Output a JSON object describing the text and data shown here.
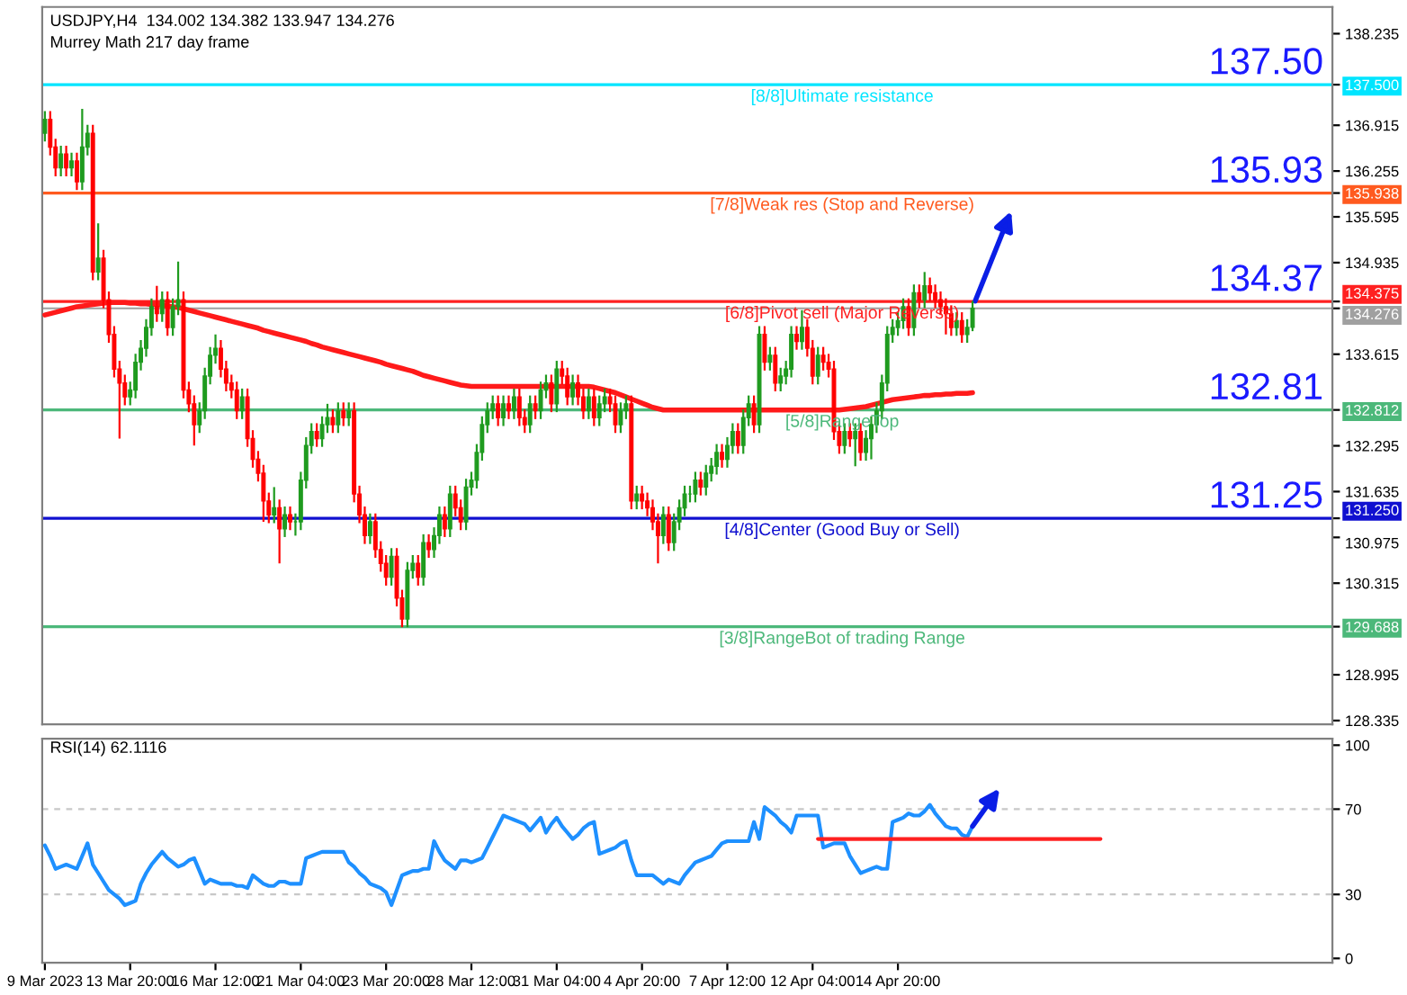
{
  "chart_data": [
    {
      "type": "candlestick",
      "title": "USDJPY,H4  134.002 134.382 133.947 134.276",
      "subtitle": "Murrey Math 217 day frame",
      "tick_labels": "y",
      "categories": [
        null,
        null,
        null,
        null,
        null,
        null,
        null,
        null,
        null,
        null,
        null,
        null,
        null,
        null,
        null,
        null,
        null,
        null,
        null,
        null,
        null,
        null,
        null,
        null,
        null,
        null,
        null,
        null,
        null,
        null,
        null,
        null,
        null,
        null,
        null,
        null,
        null,
        null,
        null,
        null,
        null,
        null,
        null,
        null,
        null,
        null,
        null,
        null,
        null,
        null,
        null,
        null,
        null,
        null,
        null,
        null,
        null,
        null,
        null,
        null,
        null,
        null,
        null,
        null,
        null,
        null,
        null,
        null,
        null,
        null,
        null,
        null,
        null,
        null,
        null,
        null,
        null,
        null,
        null,
        null,
        null,
        null,
        null,
        null,
        null,
        null,
        null,
        null,
        null,
        null,
        null,
        null,
        null,
        null,
        null,
        null,
        null,
        null,
        null,
        null,
        null,
        null,
        null,
        null,
        null,
        null,
        null,
        null,
        null,
        null,
        null,
        null,
        null,
        null,
        null,
        null,
        null,
        null,
        null,
        null,
        null,
        null,
        null,
        null,
        null,
        null,
        null,
        null,
        null,
        null,
        null,
        null,
        null,
        null,
        null,
        null,
        null,
        null,
        null,
        null,
        null,
        null,
        null,
        null,
        null,
        null,
        null,
        null,
        null,
        null,
        null,
        null,
        null,
        null,
        null,
        null,
        null,
        null,
        null,
        null,
        null,
        null,
        null,
        null,
        null,
        null,
        null,
        null,
        null,
        null,
        null,
        null,
        null,
        null,
        null,
        null,
        null,
        null,
        null,
        null,
        null,
        null,
        null,
        null,
        null,
        null,
        null,
        null,
        null,
        null,
        null,
        null,
        null,
        null,
        null,
        null,
        null,
        null,
        null,
        null,
        null,
        null,
        null,
        null,
        null,
        null,
        null,
        null,
        null,
        null,
        null,
        null,
        null,
        null,
        null,
        null,
        null,
        null,
        null,
        null,
        null,
        null,
        null,
        null,
        null,
        null,
        null,
        null,
        null,
        null,
        null,
        null,
        null,
        null,
        null,
        null,
        null,
        null,
        null,
        null,
        null,
        null
      ],
      "ohlc": [
        [
          136.8,
          137.12,
          136.68,
          137.0
        ],
        [
          137.0,
          137.12,
          136.48,
          136.6
        ],
        [
          136.6,
          136.72,
          136.18,
          136.3
        ],
        [
          136.3,
          136.62,
          136.18,
          136.5
        ],
        [
          136.5,
          136.62,
          136.18,
          136.3
        ],
        [
          136.3,
          136.52,
          136.18,
          136.4
        ],
        [
          136.4,
          136.52,
          135.98,
          136.1
        ],
        [
          136.1,
          137.15,
          135.98,
          136.6
        ],
        [
          136.6,
          136.92,
          136.48,
          136.8
        ],
        [
          136.8,
          136.92,
          134.68,
          134.8
        ],
        [
          134.8,
          135.5,
          134.68,
          135.0
        ],
        [
          135.0,
          135.12,
          134.28,
          134.4
        ],
        [
          134.4,
          134.52,
          133.78,
          133.9
        ],
        [
          133.9,
          134.02,
          133.28,
          133.4
        ],
        [
          133.4,
          133.52,
          132.4,
          133.2
        ],
        [
          133.2,
          133.32,
          132.88,
          133.0
        ],
        [
          133.0,
          133.22,
          132.88,
          133.1
        ],
        [
          133.1,
          133.62,
          132.98,
          133.5
        ],
        [
          133.5,
          133.82,
          133.38,
          133.7
        ],
        [
          133.7,
          134.12,
          133.58,
          134.0
        ],
        [
          134.0,
          134.42,
          133.88,
          134.3
        ],
        [
          134.3,
          134.6,
          134.08,
          134.2
        ],
        [
          134.2,
          134.52,
          134.08,
          134.4
        ],
        [
          134.4,
          134.52,
          133.88,
          134.0
        ],
        [
          134.0,
          134.42,
          133.88,
          134.3
        ],
        [
          134.3,
          134.95,
          134.18,
          134.4
        ],
        [
          134.4,
          134.52,
          132.98,
          133.1
        ],
        [
          133.1,
          133.22,
          132.78,
          132.9
        ],
        [
          132.9,
          133.02,
          132.3,
          132.6
        ],
        [
          132.6,
          132.92,
          132.48,
          132.8
        ],
        [
          132.8,
          133.42,
          132.68,
          133.3
        ],
        [
          133.3,
          133.72,
          133.18,
          133.6
        ],
        [
          133.6,
          133.9,
          133.48,
          133.7
        ],
        [
          133.7,
          133.82,
          133.28,
          133.4
        ],
        [
          133.4,
          133.52,
          133.08,
          133.2
        ],
        [
          133.2,
          133.32,
          132.98,
          133.1
        ],
        [
          133.1,
          133.22,
          132.68,
          132.8
        ],
        [
          132.8,
          133.12,
          132.68,
          133.0
        ],
        [
          133.0,
          133.12,
          132.28,
          132.4
        ],
        [
          132.4,
          132.52,
          131.98,
          132.1
        ],
        [
          132.1,
          132.22,
          131.78,
          131.9
        ],
        [
          131.9,
          132.02,
          131.2,
          131.5
        ],
        [
          131.5,
          131.62,
          131.18,
          131.3
        ],
        [
          131.3,
          131.7,
          131.18,
          131.4
        ],
        [
          131.4,
          131.52,
          130.6,
          131.1
        ],
        [
          131.1,
          131.42,
          130.98,
          131.3
        ],
        [
          131.3,
          131.42,
          131.08,
          131.2
        ],
        [
          131.2,
          131.32,
          131.0,
          131.2
        ],
        [
          131.2,
          131.92,
          131.08,
          131.8
        ],
        [
          131.8,
          132.42,
          131.68,
          132.3
        ],
        [
          132.3,
          132.62,
          132.18,
          132.5
        ],
        [
          132.5,
          132.62,
          132.28,
          132.4
        ],
        [
          132.4,
          132.72,
          132.28,
          132.6
        ],
        [
          132.6,
          132.9,
          132.48,
          132.7
        ],
        [
          132.7,
          132.82,
          132.48,
          132.6
        ],
        [
          132.6,
          132.92,
          132.48,
          132.8
        ],
        [
          132.8,
          132.92,
          132.58,
          132.7
        ],
        [
          132.7,
          132.92,
          132.58,
          132.8
        ],
        [
          132.8,
          132.92,
          131.48,
          131.6
        ],
        [
          131.6,
          131.72,
          131.18,
          131.3
        ],
        [
          131.3,
          131.42,
          130.88,
          131.0
        ],
        [
          131.0,
          131.32,
          130.88,
          131.2
        ],
        [
          131.2,
          131.32,
          130.68,
          130.8
        ],
        [
          130.8,
          130.92,
          130.48,
          130.6
        ],
        [
          130.6,
          130.72,
          130.28,
          130.4
        ],
        [
          130.4,
          130.82,
          130.28,
          130.7
        ],
        [
          130.7,
          130.82,
          129.98,
          130.1
        ],
        [
          130.1,
          130.22,
          129.68,
          129.8
        ],
        [
          129.8,
          130.62,
          129.68,
          130.5
        ],
        [
          130.5,
          130.72,
          130.38,
          130.6
        ],
        [
          130.6,
          130.72,
          130.28,
          130.4
        ],
        [
          130.4,
          131.02,
          130.28,
          130.9
        ],
        [
          130.9,
          131.02,
          130.68,
          130.8
        ],
        [
          130.8,
          131.12,
          130.68,
          131.0
        ],
        [
          131.0,
          131.42,
          130.88,
          131.3
        ],
        [
          131.3,
          131.42,
          130.98,
          131.1
        ],
        [
          131.1,
          131.72,
          130.98,
          131.6
        ],
        [
          131.6,
          131.72,
          131.28,
          131.4
        ],
        [
          131.4,
          131.52,
          131.08,
          131.2
        ],
        [
          131.2,
          131.82,
          131.08,
          131.7
        ],
        [
          131.7,
          131.92,
          131.58,
          131.8
        ],
        [
          131.8,
          132.32,
          131.68,
          132.2
        ],
        [
          132.2,
          132.72,
          132.08,
          132.6
        ],
        [
          132.6,
          132.92,
          132.48,
          132.8
        ],
        [
          132.8,
          133.02,
          132.68,
          132.9
        ],
        [
          132.9,
          133.02,
          132.58,
          132.7
        ],
        [
          132.7,
          133.02,
          132.58,
          132.9
        ],
        [
          132.9,
          133.02,
          132.68,
          132.8
        ],
        [
          132.8,
          133.12,
          132.68,
          133.0
        ],
        [
          133.0,
          133.12,
          132.58,
          132.7
        ],
        [
          132.7,
          132.82,
          132.48,
          132.6
        ],
        [
          132.6,
          133.02,
          132.48,
          132.9
        ],
        [
          132.9,
          133.02,
          132.68,
          132.8
        ],
        [
          132.8,
          133.22,
          132.68,
          133.1
        ],
        [
          133.1,
          133.32,
          132.98,
          133.2
        ],
        [
          133.2,
          133.32,
          132.78,
          132.9
        ],
        [
          132.9,
          133.52,
          132.78,
          133.4
        ],
        [
          133.4,
          133.52,
          133.18,
          133.3
        ],
        [
          133.3,
          133.42,
          132.88,
          133.0
        ],
        [
          133.0,
          133.32,
          132.88,
          133.2
        ],
        [
          133.2,
          133.32,
          132.88,
          133.0
        ],
        [
          133.0,
          133.12,
          132.68,
          132.8
        ],
        [
          132.8,
          133.12,
          132.68,
          133.0
        ],
        [
          133.0,
          133.12,
          132.58,
          132.7
        ],
        [
          132.7,
          133.02,
          132.58,
          132.9
        ],
        [
          132.9,
          133.12,
          132.78,
          133.0
        ],
        [
          133.0,
          133.12,
          132.78,
          132.9
        ],
        [
          132.9,
          133.02,
          132.48,
          132.6
        ],
        [
          132.6,
          132.92,
          132.48,
          132.8
        ],
        [
          132.8,
          133.02,
          132.68,
          132.9
        ],
        [
          132.9,
          133.02,
          131.38,
          131.5
        ],
        [
          131.5,
          131.72,
          131.38,
          131.6
        ],
        [
          131.6,
          131.72,
          131.38,
          131.5
        ],
        [
          131.5,
          131.62,
          131.28,
          131.4
        ],
        [
          131.4,
          131.52,
          131.08,
          131.2
        ],
        [
          131.2,
          131.32,
          130.6,
          131.0
        ],
        [
          131.0,
          131.42,
          130.88,
          131.3
        ],
        [
          131.3,
          131.42,
          130.78,
          130.9
        ],
        [
          130.9,
          131.32,
          130.78,
          131.2
        ],
        [
          131.2,
          131.52,
          131.08,
          131.4
        ],
        [
          131.4,
          131.72,
          131.28,
          131.6
        ],
        [
          131.6,
          131.72,
          131.48,
          131.6
        ],
        [
          131.6,
          131.92,
          131.48,
          131.8
        ],
        [
          131.8,
          131.92,
          131.58,
          131.7
        ],
        [
          131.7,
          132.02,
          131.58,
          131.9
        ],
        [
          131.9,
          132.12,
          131.78,
          132.0
        ],
        [
          132.0,
          132.32,
          131.88,
          132.2
        ],
        [
          132.2,
          132.32,
          131.98,
          132.1
        ],
        [
          132.1,
          132.42,
          131.98,
          132.3
        ],
        [
          132.3,
          132.62,
          132.18,
          132.5
        ],
        [
          132.5,
          132.62,
          132.18,
          132.3
        ],
        [
          132.3,
          132.82,
          132.18,
          132.7
        ],
        [
          132.7,
          133.02,
          132.58,
          132.9
        ],
        [
          132.9,
          133.02,
          132.48,
          132.6
        ],
        [
          132.6,
          134.02,
          132.48,
          133.9
        ],
        [
          133.9,
          134.02,
          133.38,
          133.5
        ],
        [
          133.5,
          133.72,
          133.38,
          133.6
        ],
        [
          133.6,
          133.72,
          133.08,
          133.2
        ],
        [
          133.2,
          133.42,
          133.08,
          133.3
        ],
        [
          133.3,
          133.52,
          133.18,
          133.4
        ],
        [
          133.4,
          134.02,
          133.28,
          133.9
        ],
        [
          133.9,
          134.02,
          133.68,
          133.8
        ],
        [
          133.8,
          134.25,
          133.68,
          134.0
        ],
        [
          134.0,
          134.12,
          133.58,
          133.7
        ],
        [
          133.7,
          133.82,
          133.18,
          133.3
        ],
        [
          133.3,
          133.72,
          133.18,
          133.6
        ],
        [
          133.6,
          133.72,
          133.38,
          133.5
        ],
        [
          133.5,
          133.62,
          133.28,
          133.4
        ],
        [
          133.4,
          133.52,
          132.38,
          132.5
        ],
        [
          132.5,
          132.62,
          132.18,
          132.3
        ],
        [
          132.3,
          132.62,
          132.18,
          132.5
        ],
        [
          132.5,
          132.62,
          132.28,
          132.4
        ],
        [
          132.4,
          132.62,
          132.0,
          132.5
        ],
        [
          132.5,
          132.62,
          132.08,
          132.2
        ],
        [
          132.2,
          132.52,
          132.08,
          132.4
        ],
        [
          132.4,
          132.72,
          132.1,
          132.6
        ],
        [
          132.6,
          132.92,
          132.48,
          132.8
        ],
        [
          132.8,
          133.32,
          132.68,
          133.2
        ],
        [
          133.2,
          134.02,
          133.08,
          133.9
        ],
        [
          133.9,
          134.12,
          133.78,
          134.0
        ],
        [
          134.0,
          134.22,
          133.88,
          134.1
        ],
        [
          134.1,
          134.42,
          133.98,
          134.3
        ],
        [
          134.3,
          134.42,
          133.88,
          134.0
        ],
        [
          134.0,
          134.62,
          133.88,
          134.5
        ],
        [
          134.5,
          134.62,
          134.28,
          134.4
        ],
        [
          134.4,
          134.8,
          134.28,
          134.6
        ],
        [
          134.6,
          134.72,
          134.38,
          134.5
        ],
        [
          134.5,
          134.62,
          134.28,
          134.4
        ],
        [
          134.4,
          134.52,
          134.18,
          134.3
        ],
        [
          134.3,
          134.42,
          133.9,
          134.2
        ],
        [
          134.2,
          134.32,
          133.88,
          134.0
        ],
        [
          134.0,
          134.22,
          133.88,
          134.1
        ],
        [
          134.1,
          134.22,
          133.78,
          133.9
        ],
        [
          133.9,
          134.12,
          133.78,
          134.0
        ],
        [
          134.002,
          134.382,
          133.947,
          134.276
        ],
        null,
        null,
        null,
        null,
        null,
        null,
        null,
        null,
        null,
        null,
        null,
        null,
        null,
        null,
        null,
        null,
        null,
        null,
        null,
        null,
        null,
        null,
        null,
        null,
        null,
        null,
        null,
        null,
        null,
        null,
        null,
        null,
        null,
        null,
        null,
        null,
        null,
        null,
        null,
        null,
        null,
        null,
        null,
        null,
        null,
        null,
        null,
        null,
        null,
        null,
        null,
        null,
        null,
        null,
        null,
        null,
        null,
        null,
        null,
        null,
        null,
        null,
        null,
        null,
        null,
        null,
        null
      ],
      "series": [
        {
          "type": "line",
          "color": "#ff1a1a",
          "values": [
            134.18,
            134.2,
            134.22,
            134.24,
            134.26,
            134.28,
            134.3,
            134.31,
            134.32,
            134.33,
            134.34,
            134.35,
            134.36,
            134.36,
            134.36,
            134.36,
            134.35,
            134.35,
            134.34,
            134.34,
            134.33,
            134.33,
            134.32,
            134.31,
            134.3,
            134.29,
            134.27,
            134.25,
            134.23,
            134.21,
            134.19,
            134.17,
            134.15,
            134.13,
            134.11,
            134.09,
            134.07,
            134.05,
            134.03,
            134.01,
            133.99,
            133.96,
            133.94,
            133.92,
            133.9,
            133.88,
            133.86,
            133.84,
            133.82,
            133.8,
            133.77,
            133.75,
            133.72,
            133.7,
            133.68,
            133.66,
            133.64,
            133.62,
            133.6,
            133.58,
            133.56,
            133.54,
            133.52,
            133.5,
            133.47,
            133.45,
            133.43,
            133.41,
            133.39,
            133.37,
            133.34,
            133.31,
            133.29,
            133.27,
            133.25,
            133.23,
            133.21,
            133.19,
            133.17,
            133.16,
            133.15,
            133.15,
            133.15,
            133.15,
            133.15,
            133.15,
            133.15,
            133.15,
            133.15,
            133.15,
            133.15,
            133.15,
            133.15,
            133.15,
            133.15,
            133.15,
            133.15,
            133.15,
            133.15,
            133.15,
            133.15,
            133.15,
            133.15,
            133.14,
            133.12,
            133.1,
            133.08,
            133.06,
            133.03,
            133.0,
            132.97,
            132.94,
            132.91,
            132.88,
            132.85,
            132.83,
            132.81,
            132.81,
            132.81,
            132.81,
            132.81,
            132.81,
            132.81,
            132.81,
            132.81,
            132.81,
            132.81,
            132.81,
            132.81,
            132.81,
            132.81,
            132.81,
            132.81,
            132.81,
            132.81,
            132.81,
            132.81,
            132.81,
            132.81,
            132.81,
            132.81,
            132.81,
            132.81,
            132.81,
            132.81,
            132.81,
            132.81,
            132.81,
            132.81,
            132.81,
            132.82,
            132.83,
            132.84,
            132.85,
            132.86,
            132.88,
            132.9,
            132.92,
            132.94,
            132.96,
            132.97,
            132.98,
            132.99,
            133.0,
            133.01,
            133.02,
            133.02,
            133.03,
            133.03,
            133.04,
            133.04,
            133.05,
            133.05,
            133.05,
            133.06,
            null,
            null,
            null,
            null,
            null,
            null,
            null,
            null,
            null,
            null,
            null,
            null,
            null,
            null,
            null,
            null,
            null,
            null,
            null,
            null,
            null,
            null,
            null,
            null,
            null,
            null,
            null,
            null,
            null,
            null,
            null,
            null,
            null,
            null,
            null,
            null,
            null,
            null,
            null,
            null,
            null,
            null,
            null,
            null,
            null,
            null,
            null,
            null,
            null,
            null,
            null,
            null,
            null,
            null,
            null,
            null,
            null,
            null,
            null,
            null,
            null,
            null,
            null,
            null,
            null,
            null,
            null
          ]
        }
      ],
      "ylim": [
        128.28,
        138.62
      ],
      "yticks": [
        138.235,
        {
          "value": 137.5,
          "label": "137.500"
        },
        136.915,
        136.255,
        {
          "value": 135.938,
          "label": "135.938"
        },
        135.595,
        134.935,
        {
          "value": 134.375,
          "label": "134.375"
        },
        {
          "value": 134.276,
          "label": "134.276"
        },
        133.615,
        {
          "value": 132.812,
          "label": "132.812"
        },
        132.295,
        131.635,
        {
          "value": 131.25,
          "label": "131.250"
        },
        130.975,
        130.315,
        {
          "value": 129.688,
          "label": "129.688"
        },
        128.995,
        128.335
      ],
      "ref_lines": [
        {
          "axis": "y",
          "value": 137.5,
          "label": "[8/8]Ultimate resistance",
          "color": "#00e5ff"
        },
        {
          "axis": "y",
          "value": 135.938,
          "label": "[7/8]Weak res (Stop and Reverse)",
          "color": "#ff5a1f"
        },
        {
          "axis": "y",
          "value": 134.375,
          "label": "[6/8]Pivot sell (Major Reverse)",
          "color": "#ff2020"
        },
        {
          "axis": "y",
          "value": 134.276,
          "color": "#a0a0a0"
        },
        {
          "axis": "y",
          "value": 132.812,
          "label": "[5/8]RangeTop",
          "color": "#4cb87a"
        },
        {
          "axis": "y",
          "value": 131.25,
          "label": "[4/8]Center (Good Buy or Sell)",
          "color": "#1010d0"
        },
        {
          "axis": "y",
          "value": 129.688,
          "label": "[3/8]RangeBot of trading Range",
          "color": "#4cb87a"
        }
      ],
      "annotations": [
        {
          "text": "137.50",
          "y": 137.5
        },
        {
          "text": "135.93",
          "y": 135.938
        },
        {
          "text": "134.37",
          "y": 134.375
        },
        {
          "text": "132.81",
          "y": 132.812
        },
        {
          "text": "131.25",
          "y": 131.25
        }
      ]
    },
    {
      "type": "line",
      "title": "RSI(14) 62.1116",
      "categories": [
        "9 Mar 2023",
        null,
        null,
        null,
        null,
        null,
        null,
        null,
        null,
        null,
        null,
        null,
        null,
        null,
        null,
        null,
        "13 Mar 20:00",
        null,
        null,
        null,
        null,
        null,
        null,
        null,
        null,
        null,
        null,
        null,
        null,
        null,
        null,
        null,
        "16 Mar 12:00",
        null,
        null,
        null,
        null,
        null,
        null,
        null,
        null,
        null,
        null,
        null,
        null,
        null,
        null,
        null,
        "21 Mar 04:00",
        null,
        null,
        null,
        null,
        null,
        null,
        null,
        null,
        null,
        null,
        null,
        null,
        null,
        null,
        null,
        "23 Mar 20:00",
        null,
        null,
        null,
        null,
        null,
        null,
        null,
        null,
        null,
        null,
        null,
        null,
        null,
        null,
        null,
        "28 Mar 12:00",
        null,
        null,
        null,
        null,
        null,
        null,
        null,
        null,
        null,
        null,
        null,
        null,
        null,
        null,
        null,
        "31 Mar 04:00",
        null,
        null,
        null,
        null,
        null,
        null,
        null,
        null,
        null,
        null,
        null,
        null,
        null,
        null,
        null,
        "4 Apr 20:00",
        null,
        null,
        null,
        null,
        null,
        null,
        null,
        null,
        null,
        null,
        null,
        null,
        null,
        null,
        null,
        "7 Apr 12:00",
        null,
        null,
        null,
        null,
        null,
        null,
        null,
        null,
        null,
        null,
        null,
        null,
        null,
        null,
        null,
        "12 Apr 04:00",
        null,
        null,
        null,
        null,
        null,
        null,
        null,
        null,
        null,
        null,
        null,
        null,
        null,
        null,
        null,
        "14 Apr 20:00",
        null,
        null,
        null,
        null,
        null,
        null,
        null,
        null,
        null,
        null,
        null,
        null,
        null,
        null,
        null,
        null,
        null,
        null,
        null,
        null,
        null,
        null,
        null,
        null,
        null,
        null,
        null,
        null,
        null,
        null,
        null,
        null,
        null,
        null,
        null,
        null,
        null,
        null,
        null,
        null,
        null,
        null,
        null,
        null,
        null,
        null,
        null,
        null,
        null,
        null,
        null,
        null,
        null,
        null,
        null,
        null,
        null,
        null,
        null,
        null,
        null,
        null,
        null,
        null,
        null,
        null,
        null,
        null,
        null,
        null,
        null,
        null,
        null,
        null,
        null,
        null,
        null,
        null,
        null,
        null,
        null
      ],
      "series": [
        {
          "color": "#1e90ff",
          "values": [
            53,
            48,
            42,
            43,
            44,
            43,
            42,
            48,
            54,
            44,
            40,
            36,
            32,
            30,
            28,
            25,
            26,
            27,
            35,
            40,
            44,
            47,
            50,
            47,
            45,
            43,
            44,
            46,
            47,
            41,
            35,
            37,
            36,
            35,
            35,
            35,
            34,
            34,
            33,
            39,
            37,
            35,
            34,
            34,
            36,
            36,
            35,
            35,
            35,
            47,
            48,
            49,
            50,
            50,
            50,
            50,
            50,
            45,
            43,
            40,
            38,
            35,
            34,
            33,
            31,
            25,
            32,
            39,
            40,
            41,
            41,
            42,
            42,
            55,
            50,
            46,
            44,
            42,
            46,
            46,
            45,
            46,
            47,
            52,
            57,
            62,
            67,
            66,
            65,
            64,
            63,
            60,
            63,
            66,
            59,
            63,
            66,
            62,
            59,
            56,
            58,
            61,
            63,
            64,
            49,
            50,
            51,
            52,
            54,
            55,
            46,
            39,
            39,
            39,
            39,
            37,
            35,
            37,
            36,
            35,
            39,
            42,
            45,
            46,
            47,
            48,
            51,
            54,
            55,
            55,
            55,
            55,
            55,
            64,
            56,
            71,
            69,
            67,
            64,
            62,
            59,
            67,
            67,
            67,
            67,
            67,
            52,
            53,
            54,
            54,
            54,
            48,
            44,
            40,
            41,
            42,
            43,
            42,
            42,
            64,
            65,
            66,
            68,
            67,
            67,
            69,
            72,
            68,
            65,
            62,
            61,
            61,
            58,
            57,
            62,
            null,
            null,
            null,
            null,
            null,
            null,
            null,
            null,
            null,
            null,
            null,
            null,
            null,
            null,
            null,
            null,
            null,
            null,
            null,
            null,
            null,
            null,
            null,
            null,
            null,
            null,
            null,
            null,
            null,
            null,
            null,
            null,
            null,
            null,
            null,
            null,
            null,
            null,
            null,
            null,
            null,
            null,
            null,
            null,
            null,
            null,
            null,
            null,
            null,
            null,
            null,
            null,
            null,
            null,
            null,
            null,
            null,
            null,
            null,
            null,
            null,
            null,
            null,
            null,
            null,
            null,
            null
          ]
        },
        {
          "color": "#ff2020",
          "values": [
            null,
            null,
            null,
            null,
            null,
            null,
            null,
            null,
            null,
            null,
            null,
            null,
            null,
            null,
            null,
            null,
            null,
            null,
            null,
            null,
            null,
            null,
            null,
            null,
            null,
            null,
            null,
            null,
            null,
            null,
            null,
            null,
            null,
            null,
            null,
            null,
            null,
            null,
            null,
            null,
            null,
            null,
            null,
            null,
            null,
            null,
            null,
            null,
            null,
            null,
            null,
            null,
            null,
            null,
            null,
            null,
            null,
            null,
            null,
            null,
            null,
            null,
            null,
            null,
            null,
            null,
            null,
            null,
            null,
            null,
            null,
            null,
            null,
            null,
            null,
            null,
            null,
            null,
            null,
            null,
            null,
            null,
            null,
            null,
            null,
            null,
            null,
            null,
            null,
            null,
            null,
            null,
            null,
            null,
            null,
            null,
            null,
            null,
            null,
            null,
            null,
            null,
            null,
            null,
            null,
            null,
            null,
            null,
            null,
            null,
            null,
            null,
            null,
            null,
            null,
            null,
            null,
            null,
            null,
            null,
            null,
            null,
            null,
            null,
            null,
            null,
            null,
            null,
            null,
            null,
            null,
            null,
            null,
            null,
            null,
            null,
            null,
            null,
            null,
            null,
            null,
            null,
            null,
            null,
            null,
            56,
            56,
            56,
            56,
            56,
            56,
            56,
            56,
            56,
            56,
            56,
            56,
            56,
            56,
            56,
            56,
            56,
            56,
            56,
            56,
            56,
            56,
            56,
            56,
            56,
            56,
            56,
            56,
            56,
            56,
            56,
            56,
            56,
            56,
            56,
            56,
            56,
            56,
            56,
            56,
            56,
            56,
            56,
            56,
            56,
            56,
            56,
            56,
            56,
            56,
            56,
            56,
            56,
            56,
            null,
            null,
            null,
            null,
            null,
            null,
            null,
            null,
            null,
            null,
            null,
            null,
            null,
            null,
            null,
            null,
            null,
            null,
            null,
            null,
            null,
            null,
            null,
            null,
            null,
            null,
            null,
            null,
            null,
            null,
            null,
            null,
            null,
            null,
            null,
            null,
            null,
            null,
            null,
            null,
            null,
            null,
            null
          ]
        }
      ],
      "ylim": [
        -2,
        103
      ],
      "yticks": [
        0,
        30,
        70,
        100
      ],
      "ref_lines": [
        {
          "axis": "y",
          "value": 70,
          "color": "#c8c8c8",
          "line_style": "dashed"
        },
        {
          "axis": "y",
          "value": 30,
          "color": "#c8c8c8",
          "line_style": "dashed"
        }
      ]
    }
  ]
}
